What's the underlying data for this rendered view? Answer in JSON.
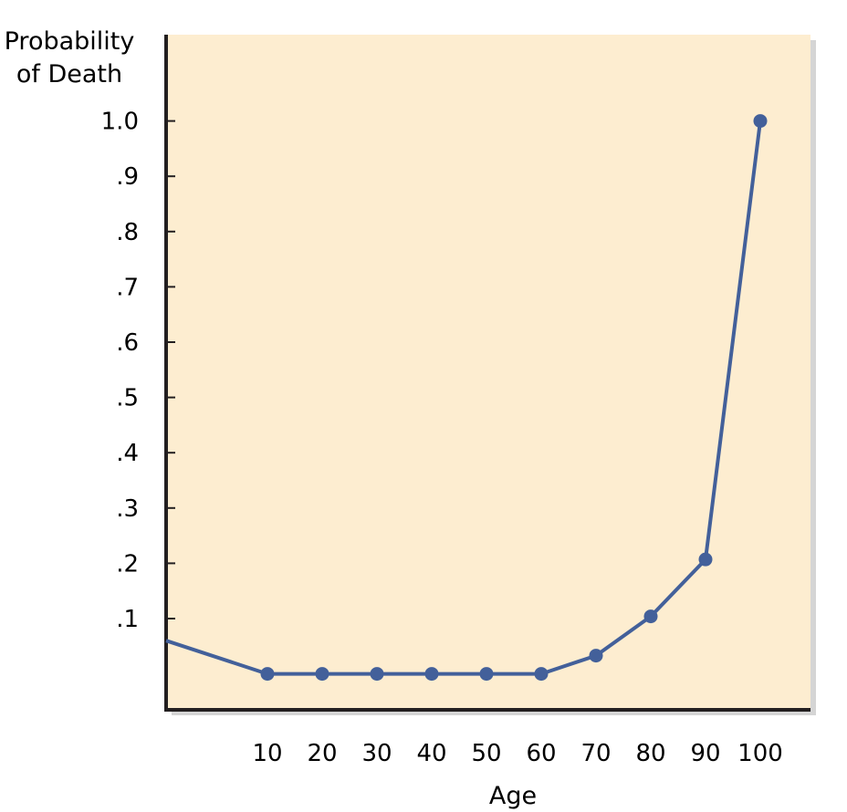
{
  "chart_data": {
    "type": "line",
    "title": "",
    "ylabel": [
      "Probability",
      "of Death"
    ],
    "xlabel": "Age",
    "x_ticks": [
      "10",
      "20",
      "30",
      "40",
      "50",
      "60",
      "70",
      "80",
      "90",
      "100"
    ],
    "y_ticks": [
      ".1",
      ".2",
      ".3",
      ".4",
      ".5",
      ".6",
      ".7",
      ".8",
      ".9",
      "1.0"
    ],
    "y_tick_values": [
      0.1,
      0.2,
      0.3,
      0.4,
      0.5,
      0.6,
      0.7,
      0.8,
      0.9,
      1.0
    ],
    "xlim": [
      -8.5,
      104.5
    ],
    "ylim": [
      -0.065,
      1.1
    ],
    "series": [
      {
        "start_point": {
          "x": -8.5,
          "y": 0.06
        },
        "points": [
          {
            "x": 10,
            "y": 0.0
          },
          {
            "x": 20,
            "y": 0.0
          },
          {
            "x": 30,
            "y": 0.0
          },
          {
            "x": 40,
            "y": 0.0
          },
          {
            "x": 50,
            "y": 0.0
          },
          {
            "x": 60,
            "y": 0.0
          },
          {
            "x": 70,
            "y": 0.033
          },
          {
            "x": 80,
            "y": 0.104
          },
          {
            "x": 90,
            "y": 0.207
          },
          {
            "x": 100,
            "y": 1.0
          }
        ]
      }
    ],
    "grid": false,
    "legend": "none",
    "colors": {
      "plot_background": "#fdedd0",
      "line": "#43609a",
      "marker": "#43609a",
      "axis": "#231f20",
      "shadow": "#b3b3b3"
    }
  }
}
